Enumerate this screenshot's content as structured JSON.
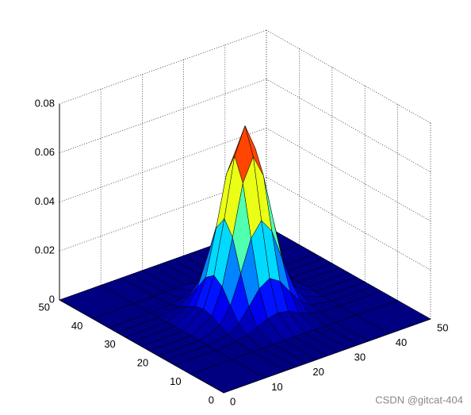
{
  "chart_data": {
    "type": "surface",
    "colormap": "jet",
    "grid": true,
    "x": [
      0,
      10,
      15,
      17.5,
      20,
      22.5,
      25,
      27.5,
      30,
      32.5,
      35,
      40,
      50
    ],
    "y": [
      0,
      10,
      15,
      17.5,
      20,
      22.5,
      25,
      27.5,
      30,
      32.5,
      35,
      40,
      50
    ],
    "z": [
      [
        0,
        0,
        0,
        0,
        0,
        0,
        0,
        0,
        0,
        0,
        0,
        0,
        0
      ],
      [
        0,
        0,
        0,
        0.0001,
        0.0001,
        0.0002,
        0.0003,
        0.0002,
        0.0001,
        0.0001,
        0,
        0,
        0
      ],
      [
        0,
        0,
        0.0005,
        0.0015,
        0.0033,
        0.0053,
        0.0062,
        0.0053,
        0.0033,
        0.0015,
        0.0005,
        0,
        0
      ],
      [
        0,
        0.0001,
        0.0015,
        0.0045,
        0.0098,
        0.0157,
        0.0184,
        0.0157,
        0.0098,
        0.0045,
        0.0015,
        0.0001,
        0
      ],
      [
        0,
        0.0001,
        0.0033,
        0.0098,
        0.0215,
        0.0343,
        0.0401,
        0.0343,
        0.0215,
        0.0098,
        0.0033,
        0.0001,
        0
      ],
      [
        0,
        0.0002,
        0.0053,
        0.0157,
        0.0343,
        0.0549,
        0.0642,
        0.0549,
        0.0343,
        0.0157,
        0.0053,
        0.0002,
        0
      ],
      [
        0,
        0.0003,
        0.0062,
        0.0184,
        0.0401,
        0.0642,
        0.075,
        0.0642,
        0.0401,
        0.0184,
        0.0062,
        0.0003,
        0
      ],
      [
        0,
        0.0002,
        0.0053,
        0.0157,
        0.0343,
        0.0549,
        0.0642,
        0.0549,
        0.0343,
        0.0157,
        0.0053,
        0.0002,
        0
      ],
      [
        0,
        0.0001,
        0.0033,
        0.0098,
        0.0215,
        0.0343,
        0.0401,
        0.0343,
        0.0215,
        0.0098,
        0.0033,
        0.0001,
        0
      ],
      [
        0,
        0.0001,
        0.0015,
        0.0045,
        0.0098,
        0.0157,
        0.0184,
        0.0157,
        0.0098,
        0.0045,
        0.0015,
        0.0001,
        0
      ],
      [
        0,
        0,
        0.0005,
        0.0015,
        0.0033,
        0.0053,
        0.0062,
        0.0053,
        0.0033,
        0.0015,
        0.0005,
        0,
        0
      ],
      [
        0,
        0,
        0,
        0.0001,
        0.0001,
        0.0002,
        0.0003,
        0.0002,
        0.0001,
        0.0001,
        0,
        0,
        0
      ],
      [
        0,
        0,
        0,
        0,
        0,
        0,
        0,
        0,
        0,
        0,
        0,
        0,
        0
      ]
    ],
    "xlim": [
      0,
      50
    ],
    "ylim": [
      0,
      50
    ],
    "zlim": [
      0,
      0.08
    ],
    "xticks": [
      0,
      10,
      20,
      30,
      40,
      50
    ],
    "yticks": [
      0,
      10,
      20,
      30,
      40,
      50
    ],
    "zticks": [
      0,
      0.02,
      0.04,
      0.06,
      0.08
    ]
  },
  "watermark": "CSDN @gitcat-404"
}
